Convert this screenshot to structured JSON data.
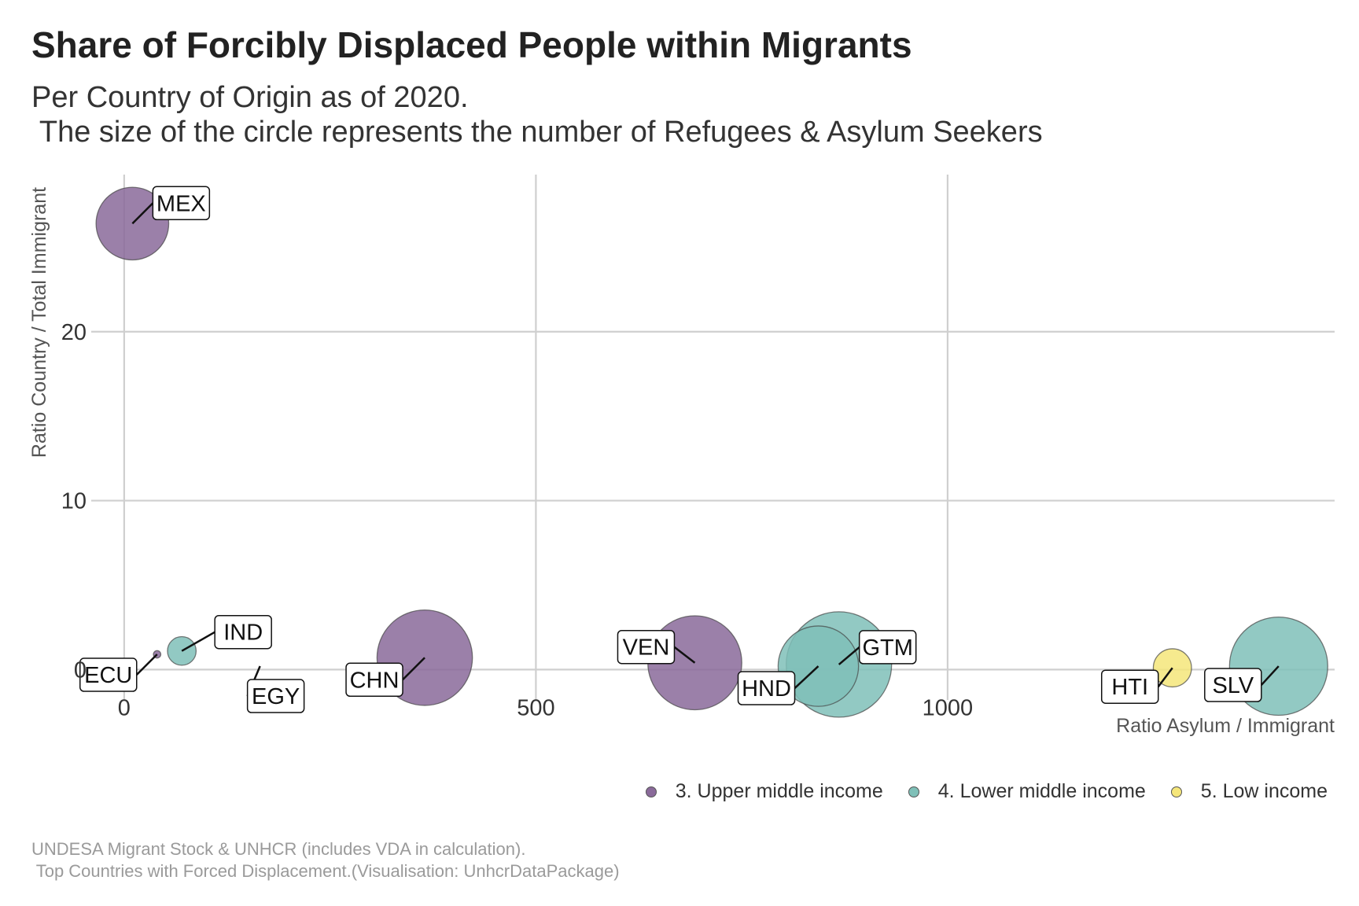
{
  "chart_data": {
    "type": "scatter",
    "title": "Share of Forcibly Displaced People within Migrants",
    "subtitle": "Per Country of Origin as of 2020.\n The size of the circle represents the number of Refugees & Asylum Seekers",
    "xlabel": "Ratio Asylum / Immigrant",
    "ylabel": "Ratio Country / Total Immigrant",
    "xlim": [
      -40,
      1470
    ],
    "ylim": [
      -1.8,
      29.3
    ],
    "x_ticks": [
      0,
      500,
      1000
    ],
    "y_ticks": [
      0,
      10,
      20
    ],
    "grid": true,
    "legend_position": "bottom-right",
    "categories": [
      {
        "name": "3. Upper middle income",
        "color": "#8A6A9A"
      },
      {
        "name": "4. Lower middle income",
        "color": "#7FC0B8"
      },
      {
        "name": "5. Low income",
        "color": "#F5E67A"
      }
    ],
    "points": [
      {
        "label": "MEX",
        "x": 10,
        "y": 26.4,
        "size": 0.58,
        "group": "3. Upper middle income"
      },
      {
        "label": "ECU",
        "x": 40,
        "y": 0.9,
        "size": 0.006,
        "group": "3. Upper middle income"
      },
      {
        "label": "IND",
        "x": 70,
        "y": 1.1,
        "size": 0.09,
        "group": "4. Lower middle income"
      },
      {
        "label": "EGY",
        "x": 165,
        "y": 0.2,
        "size": 0.0,
        "group": "4. Lower middle income"
      },
      {
        "label": "CHN",
        "x": 365,
        "y": 0.7,
        "size": 1.0,
        "group": "3. Upper middle income"
      },
      {
        "label": "VEN",
        "x": 693,
        "y": 0.4,
        "size": 0.97,
        "group": "3. Upper middle income"
      },
      {
        "label": "GTM",
        "x": 868,
        "y": 0.3,
        "size": 1.22,
        "group": "4. Lower middle income"
      },
      {
        "label": "HND",
        "x": 843,
        "y": 0.2,
        "size": 0.71,
        "group": "4. Lower middle income"
      },
      {
        "label": "HTI",
        "x": 1273,
        "y": 0.1,
        "size": 0.16,
        "group": "5. Low income"
      },
      {
        "label": "SLV",
        "x": 1402,
        "y": 0.2,
        "size": 1.06,
        "group": "4. Lower middle income"
      }
    ]
  },
  "legend": {
    "items": [
      {
        "label": "3. Upper middle income",
        "color": "#8A6A9A"
      },
      {
        "label": "4. Lower middle income",
        "color": "#7FC0B8"
      },
      {
        "label": "5. Low income",
        "color": "#F5E67A"
      }
    ]
  },
  "caption": "UNDESA Migrant Stock & UNHCR (includes VDA in calculation).\n Top Countries with Forced Displacement.(Visualisation: UnhcrDataPackage)"
}
